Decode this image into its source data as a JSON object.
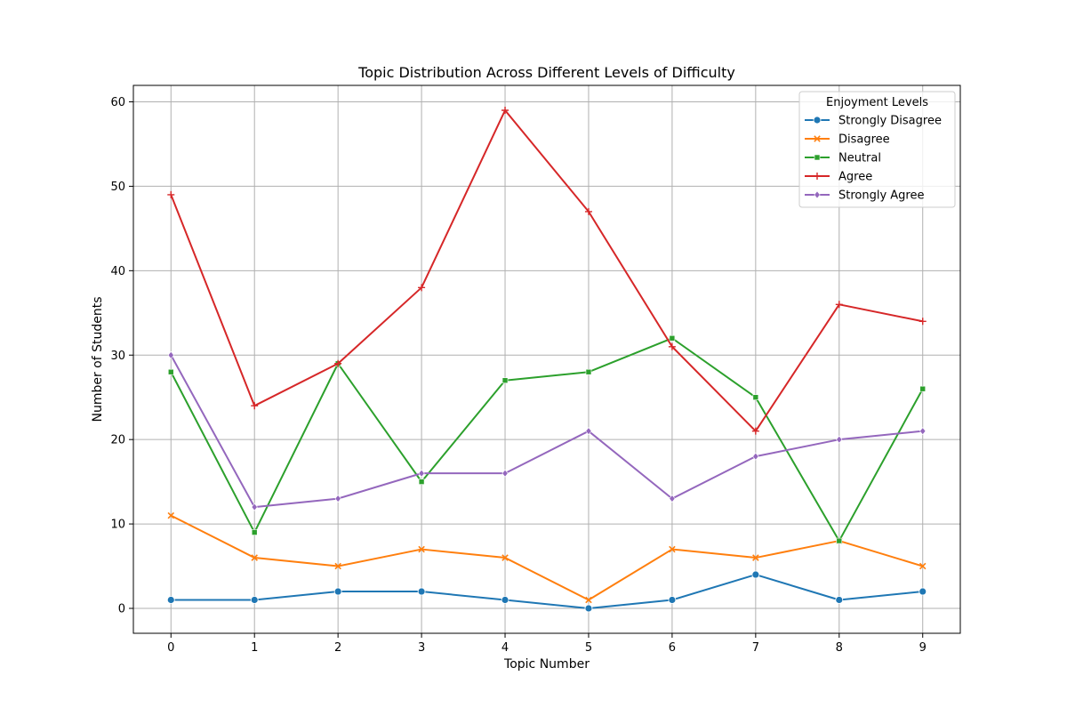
{
  "chart_data": {
    "type": "line",
    "title": "Topic Distribution Across Different Levels of Difficulty",
    "xlabel": "Topic Number",
    "ylabel": "Number of Students",
    "x": [
      0,
      1,
      2,
      3,
      4,
      5,
      6,
      7,
      8,
      9
    ],
    "x_ticks": [
      "0",
      "1",
      "2",
      "3",
      "4",
      "5",
      "6",
      "7",
      "8",
      "9"
    ],
    "y_ticks": [
      "0",
      "10",
      "20",
      "30",
      "40",
      "50",
      "60"
    ],
    "xlim": [
      -0.45,
      9.45
    ],
    "ylim": [
      -2.95,
      61.95
    ],
    "grid": true,
    "legend": {
      "title": "Enjoyment Levels",
      "placement": "top-right"
    },
    "series": [
      {
        "name": "Strongly Disagree",
        "color": "#1f77b4",
        "marker": "circle",
        "values": [
          1,
          1,
          2,
          2,
          1,
          0,
          1,
          4,
          1,
          2
        ]
      },
      {
        "name": "Disagree",
        "color": "#ff7f0e",
        "marker": "x",
        "values": [
          11,
          6,
          5,
          7,
          6,
          1,
          7,
          6,
          8,
          5
        ]
      },
      {
        "name": "Neutral",
        "color": "#2ca02c",
        "marker": "square",
        "values": [
          28,
          9,
          29,
          15,
          27,
          28,
          32,
          25,
          8,
          26
        ]
      },
      {
        "name": "Agree",
        "color": "#d62728",
        "marker": "plus",
        "values": [
          49,
          24,
          29,
          38,
          59,
          47,
          31,
          21,
          36,
          34
        ]
      },
      {
        "name": "Strongly Agree",
        "color": "#9467bd",
        "marker": "diamond",
        "values": [
          30,
          12,
          13,
          16,
          16,
          21,
          13,
          18,
          20,
          21
        ]
      }
    ]
  }
}
